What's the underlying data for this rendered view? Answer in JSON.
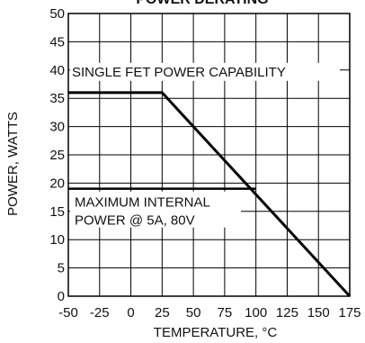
{
  "chart_data": {
    "type": "line",
    "title": "POWER DERATING",
    "xlabel": "TEMPERATURE, °C",
    "ylabel": "POWER, WATTS",
    "xlim": [
      -50,
      175
    ],
    "ylim": [
      0,
      50
    ],
    "xticks": [
      -50,
      -25,
      0,
      25,
      50,
      75,
      100,
      125,
      150,
      175
    ],
    "yticks": [
      0,
      5,
      10,
      15,
      20,
      25,
      30,
      35,
      40,
      45,
      50
    ],
    "grid": true,
    "series": [
      {
        "name": "SINGLE FET POWER CAPABILITY",
        "x": [
          -50,
          25,
          175
        ],
        "y": [
          36,
          36,
          0
        ]
      }
    ],
    "reference_lines": [
      {
        "label_lines": [
          "MAXIMUM INTERNAL",
          "POWER @ 5A, 80V"
        ],
        "y": 19,
        "x_range": [
          -50,
          100
        ]
      }
    ],
    "annotations": [
      "SINGLE FET POWER CAPABILITY",
      "MAXIMUM INTERNAL",
      "POWER @ 5A, 80V"
    ]
  }
}
